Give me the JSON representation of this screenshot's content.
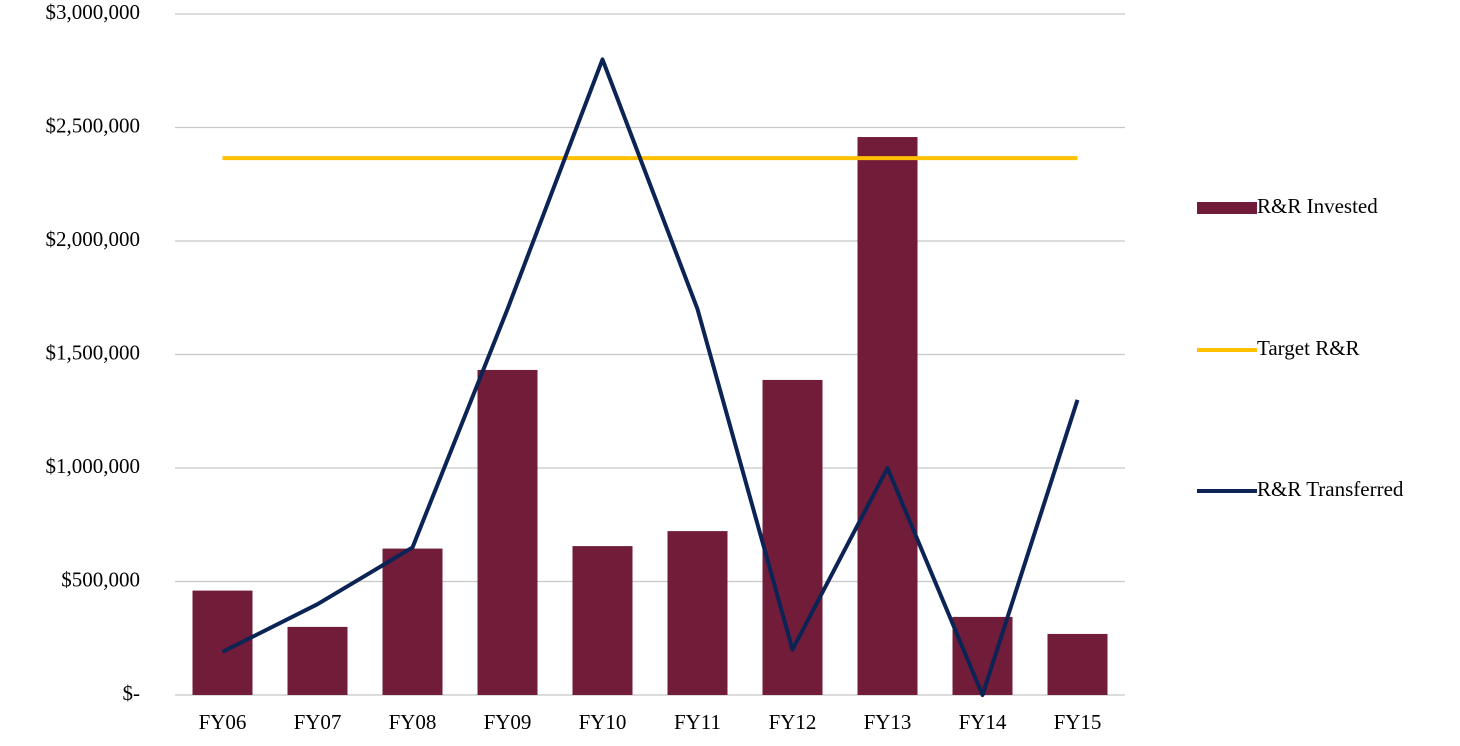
{
  "chart_data": {
    "type": "bar",
    "categories": [
      "FY06",
      "FY07",
      "FY08",
      "FY09",
      "FY10",
      "FY11",
      "FY12",
      "FY13",
      "FY14",
      "FY15"
    ],
    "series": [
      {
        "name": "R&R Invested",
        "type": "bar",
        "color": "#711c38",
        "values": [
          460000,
          300000,
          645000,
          1432000,
          656000,
          722000,
          1388000,
          2458000,
          344000,
          269000
        ]
      },
      {
        "name": "Target R&R",
        "type": "line",
        "color": "#ffc000",
        "values": [
          2365000,
          2365000,
          2365000,
          2365000,
          2365000,
          2365000,
          2365000,
          2365000,
          2365000,
          2365000
        ]
      },
      {
        "name": "R&R Transferred",
        "type": "line",
        "color": "#0c2356",
        "values": [
          190000,
          400000,
          650000,
          1700000,
          2800000,
          1700000,
          200000,
          1000000,
          0,
          1300000
        ]
      }
    ],
    "ylim": [
      0,
      3000000
    ],
    "yticks": [
      {
        "value": 0,
        "label": "$-"
      },
      {
        "value": 500000,
        "label": "$500,000"
      },
      {
        "value": 1000000,
        "label": "$1,000,000"
      },
      {
        "value": 1500000,
        "label": "$1,500,000"
      },
      {
        "value": 2000000,
        "label": "$2,000,000"
      },
      {
        "value": 2500000,
        "label": "$2,500,000"
      },
      {
        "value": 3000000,
        "label": "$3,000,000"
      }
    ],
    "grid": true,
    "legend": "right"
  }
}
